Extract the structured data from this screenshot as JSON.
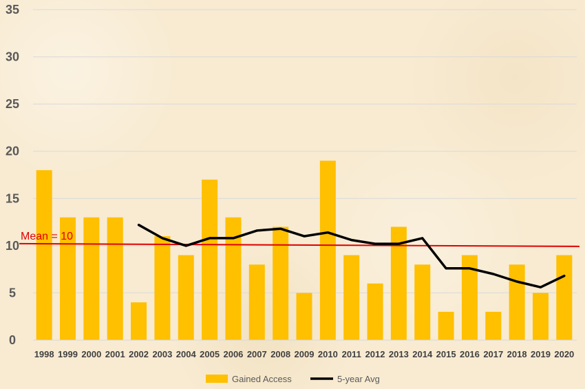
{
  "chart_data": {
    "type": "bar",
    "categories": [
      "1998",
      "1999",
      "2000",
      "2001",
      "2002",
      "2003",
      "2004",
      "2005",
      "2006",
      "2007",
      "2008",
      "2009",
      "2010",
      "2011",
      "2012",
      "2013",
      "2014",
      "2015",
      "2016",
      "2017",
      "2018",
      "2019",
      "2020"
    ],
    "series": [
      {
        "name": "Gained Access",
        "type": "bar",
        "color": "#ffc000",
        "values": [
          18,
          13,
          13,
          13,
          4,
          11,
          9,
          17,
          13,
          8,
          12,
          5,
          19,
          9,
          6,
          12,
          8,
          3,
          9,
          3,
          8,
          5,
          9
        ]
      },
      {
        "name": "5-year Avg",
        "type": "line",
        "color": "#000000",
        "values": [
          null,
          null,
          null,
          null,
          12.2,
          10.8,
          10.0,
          10.8,
          10.8,
          11.6,
          11.8,
          11.0,
          11.4,
          10.6,
          10.2,
          10.2,
          10.8,
          7.6,
          7.6,
          7.0,
          6.2,
          5.6,
          6.8
        ]
      }
    ],
    "reference_line": {
      "label": "Mean = 10",
      "value": 10,
      "color": "#e00000"
    },
    "yticks": [
      "0",
      "5",
      "10",
      "15",
      "20",
      "25",
      "30",
      "35"
    ],
    "ylim": [
      0,
      35
    ],
    "grid": true,
    "legend_position": "bottom",
    "title": "",
    "xlabel": "",
    "ylabel": ""
  }
}
